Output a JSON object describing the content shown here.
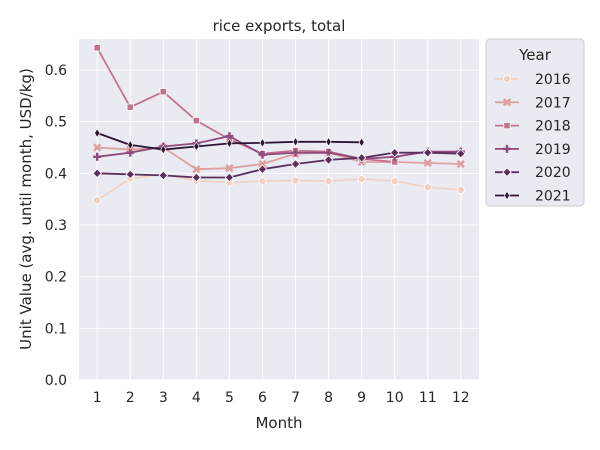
{
  "chart_data": {
    "type": "line",
    "title": "rice exports, total",
    "xlabel": "Month",
    "ylabel": "Unit Value (avg. until month, USD/kg)",
    "x": [
      1,
      2,
      3,
      4,
      5,
      6,
      7,
      8,
      9,
      10,
      11,
      12
    ],
    "xticks": [
      "1",
      "2",
      "3",
      "4",
      "5",
      "6",
      "7",
      "8",
      "9",
      "10",
      "11",
      "12"
    ],
    "ylim": [
      0,
      0.66
    ],
    "yticks": [
      "0.0",
      "0.1",
      "0.2",
      "0.3",
      "0.4",
      "0.5",
      "0.6"
    ],
    "ytick_values": [
      0,
      0.1,
      0.2,
      0.3,
      0.4,
      0.5,
      0.6
    ],
    "grid": true,
    "legend": {
      "title": "Year",
      "placement": "outside-right-top"
    },
    "series": [
      {
        "name": "2016",
        "color": "#f0d1c3",
        "marker": "circle",
        "values": [
          0.348,
          0.39,
          0.398,
          0.386,
          0.382,
          0.385,
          0.386,
          0.385,
          0.389,
          0.385,
          0.373,
          0.368
        ]
      },
      {
        "name": "2017",
        "color": "#dfa0a2",
        "marker": "x",
        "values": [
          0.45,
          0.446,
          0.45,
          0.408,
          0.41,
          0.418,
          0.438,
          0.44,
          0.422,
          0.422,
          0.42,
          0.418
        ]
      },
      {
        "name": "2018",
        "color": "#c2738d",
        "marker": "square",
        "values": [
          0.643,
          0.528,
          0.558,
          0.502,
          0.466,
          0.438,
          0.444,
          0.442,
          0.428,
          0.422,
          null,
          null
        ]
      },
      {
        "name": "2019",
        "color": "#8f4a7c",
        "marker": "plus",
        "values": [
          0.432,
          0.44,
          0.452,
          0.458,
          0.472,
          0.436,
          0.44,
          0.44,
          0.428,
          0.432,
          0.442,
          0.442
        ]
      },
      {
        "name": "2020",
        "color": "#5b2e5e",
        "marker": "diamond",
        "values": [
          0.4,
          0.398,
          0.396,
          0.392,
          0.392,
          0.408,
          0.418,
          0.426,
          0.43,
          0.44,
          0.44,
          0.438
        ]
      },
      {
        "name": "2021",
        "color": "#2c1632",
        "marker": "thin-diamond",
        "values": [
          0.478,
          0.455,
          0.446,
          0.452,
          0.458,
          0.459,
          0.461,
          0.461,
          0.46,
          null,
          null,
          null
        ]
      }
    ]
  }
}
